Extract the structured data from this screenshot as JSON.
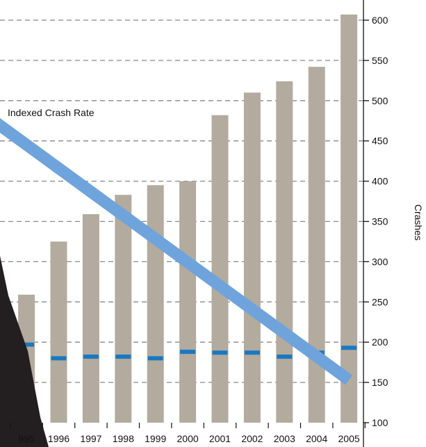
{
  "chart_data": {
    "type": "bar",
    "categories": [
      "1995",
      "1996",
      "1997",
      "1998",
      "1999",
      "2000",
      "2001",
      "2002",
      "2003",
      "2004",
      "2005"
    ],
    "series": [
      {
        "type": "bar",
        "values": [
          259,
          325,
          359,
          383,
          395,
          400,
          482,
          510,
          524,
          542,
          607
        ]
      },
      {
        "type": "marker",
        "values": [
          197,
          180,
          182,
          182,
          180,
          188,
          187,
          187,
          182,
          187,
          193
        ]
      }
    ],
    "partial_bar": {
      "x_label": "",
      "value": 289
    },
    "trend_line": {
      "label": "Indexed Crash Rate",
      "from": {
        "category": "",
        "value": 473
      },
      "to": {
        "category": "2005",
        "value": 153
      }
    },
    "ylabel": "Crashes",
    "y_ticks": [
      100,
      150,
      200,
      250,
      300,
      350,
      400,
      450,
      500,
      550,
      600
    ],
    "ylim": [
      100,
      610
    ],
    "y_axis_position": "right",
    "grid": true,
    "first_category_label_partial": "995",
    "colors": {
      "bar": "#b2ab9e",
      "marker": "#1a78c2",
      "trend": "#6fa3dc",
      "grid": "#888888",
      "axis": "#111111",
      "wedge": "#231f20"
    }
  }
}
